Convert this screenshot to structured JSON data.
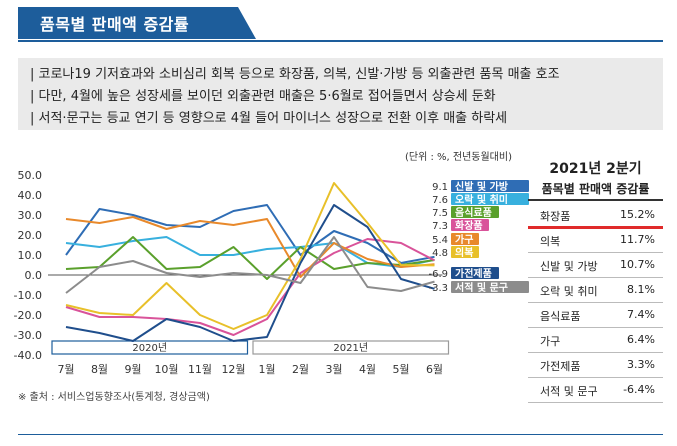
{
  "header": {
    "title": "품목별 판매액 증감률"
  },
  "summary": [
    "| 코로나19 기저효과와 소비심리 회복 등으로 화장품, 의복, 신발·가방 등 외출관련 품목 매출 호조",
    "| 다만, 4월에 높은 성장세를 보이던 외출관련 매출은 5·6월로 접어들면서 상승세 둔화",
    "| 서적·문구는 등교 연기 등 영향으로 4월 들어 마이너스 성장으로 전환 이후 매출 하락세"
  ],
  "unit_note": "(단위 : %, 전년동월대비)",
  "source_note": "※ 출처 : 서비스업동향조사(통계청, 경상금액)",
  "ranking": {
    "title_line1": "2021년 2분기",
    "title_line2": "품목별 판매액 증감률",
    "rows": [
      {
        "name": "화장품",
        "value": "15.2%"
      },
      {
        "name": "의복",
        "value": "11.7%"
      },
      {
        "name": "신발 및 가방",
        "value": "10.7%"
      },
      {
        "name": "오락 및 취미",
        "value": "8.1%"
      },
      {
        "name": "음식료품",
        "value": "7.4%"
      },
      {
        "name": "가구",
        "value": "6.4%"
      },
      {
        "name": "가전제품",
        "value": "3.3%"
      },
      {
        "name": "서적 및 문구",
        "value": "-6.4%"
      }
    ]
  },
  "chart_data": {
    "type": "line",
    "categories": [
      "7월",
      "8월",
      "9월",
      "10월",
      "11월",
      "12월",
      "1월",
      "2월",
      "3월",
      "4월",
      "5월",
      "6월"
    ],
    "period_bands": [
      {
        "label": "2020년",
        "start": "7월",
        "end": "12월"
      },
      {
        "label": "2021년",
        "start": "1월",
        "end": "6월"
      }
    ],
    "ylim": [
      -40,
      50
    ],
    "yticks": [
      "50.0",
      "40.0",
      "30.0",
      "20.0",
      "10.0",
      "0.0",
      "-10.0",
      "-20.0",
      "-30.0",
      "-40.0"
    ],
    "ytick_values": [
      50,
      40,
      30,
      20,
      10,
      0,
      -10,
      -20,
      -30,
      -40
    ],
    "grid": false,
    "series": [
      {
        "name": "신발 및 가방",
        "end_label": "9.1",
        "color": "#2f6db5",
        "values": [
          10,
          33,
          30,
          25,
          24,
          32,
          35,
          10,
          22,
          16,
          6,
          9.1
        ]
      },
      {
        "name": "오락 및 취미",
        "end_label": "7.6",
        "color": "#38b0de",
        "values": [
          16,
          14,
          17,
          19,
          10,
          10,
          13,
          14,
          16,
          6,
          4,
          7.6
        ]
      },
      {
        "name": "음식료품",
        "end_label": "7.5",
        "color": "#5aa02c",
        "values": [
          3,
          4,
          19,
          3,
          4,
          14,
          -2,
          14,
          3,
          6,
          5,
          7.5
        ]
      },
      {
        "name": "화장품",
        "end_label": "7.3",
        "color": "#d9539a",
        "values": [
          -16,
          -21,
          -21,
          -22,
          -24,
          -30,
          -22,
          1,
          11,
          18,
          16,
          7.3
        ]
      },
      {
        "name": "가구",
        "end_label": "5.4",
        "color": "#e8892b",
        "values": [
          28,
          26,
          29,
          23,
          27,
          25,
          28,
          -1,
          16,
          8,
          4,
          5.4
        ]
      },
      {
        "name": "의복",
        "end_label": "4.8",
        "color": "#e8c02a",
        "values": [
          -15,
          -19,
          -20,
          -4,
          -20,
          -27,
          -20,
          8,
          46,
          26,
          5,
          4.8
        ]
      },
      {
        "name": "가전제품",
        "end_label": "-6.9",
        "color": "#1f4e8c",
        "values": [
          -26,
          -29,
          -33,
          -22,
          -26,
          -33,
          -31,
          6,
          35,
          24,
          -2,
          -6.9
        ]
      },
      {
        "name": "서적 및 문구",
        "end_label": "-3.3",
        "color": "#8c8c8c",
        "values": [
          -9,
          4,
          7,
          1,
          -1,
          1,
          0,
          -4,
          19,
          -6,
          -8,
          -3.3
        ]
      }
    ]
  }
}
